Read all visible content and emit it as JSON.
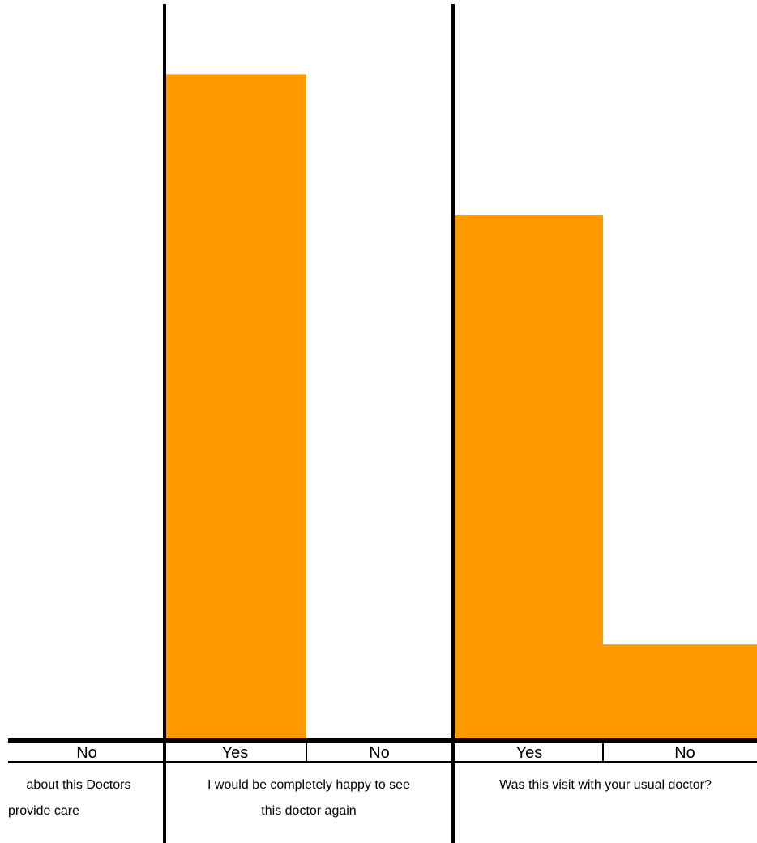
{
  "chart_data": {
    "type": "bar",
    "bar_color": "#FF9900",
    "ylim": [
      0,
      100
    ],
    "categories": [
      "No",
      "Yes",
      "No",
      "Yes",
      "No"
    ],
    "values": [
      0,
      90,
      0,
      71,
      13
    ],
    "groups": [
      {
        "label_lines": [
          "about this Doctors",
          "provide care"
        ]
      },
      {
        "label_lines": [
          "I would be completely happy to see",
          "this doctor again"
        ]
      },
      {
        "label_lines": [
          "Was this visit with your usual doctor?"
        ]
      }
    ]
  }
}
